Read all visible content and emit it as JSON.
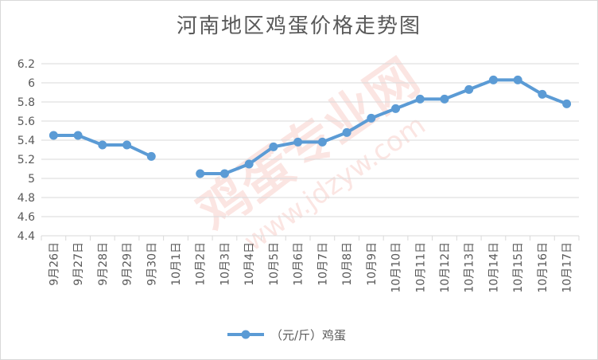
{
  "chart_data": {
    "type": "line",
    "title": "河南地区鸡蛋价格走势图",
    "categories": [
      "9月26日",
      "9月27日",
      "9月28日",
      "9月29日",
      "9月30日",
      "10月1日",
      "10月2日",
      "10月3日",
      "10月4日",
      "10月5日",
      "10月6日",
      "10月7日",
      "10月8日",
      "10月9日",
      "10月10日",
      "10月11日",
      "10月12日",
      "10月13日",
      "10月14日",
      "10月15日",
      "10月16日",
      "10月17日"
    ],
    "series": [
      {
        "name": "（元/斤）鸡蛋",
        "values": [
          5.45,
          5.45,
          5.35,
          5.35,
          5.23,
          null,
          5.05,
          5.05,
          5.15,
          5.33,
          5.38,
          5.38,
          5.48,
          5.63,
          5.73,
          5.83,
          5.83,
          5.93,
          6.03,
          6.03,
          5.88,
          5.78
        ],
        "color": "#5b9bd5"
      }
    ],
    "ylim": [
      4.4,
      6.2
    ],
    "yticks": [
      "4.4",
      "4.6",
      "4.8",
      "5",
      "5.2",
      "5.4",
      "5.6",
      "5.8",
      "6",
      "6.2"
    ],
    "grid": true,
    "legend_position": "bottom"
  },
  "watermark": {
    "text": "鸡蛋专业网",
    "url": "www.jdzyw.com"
  }
}
